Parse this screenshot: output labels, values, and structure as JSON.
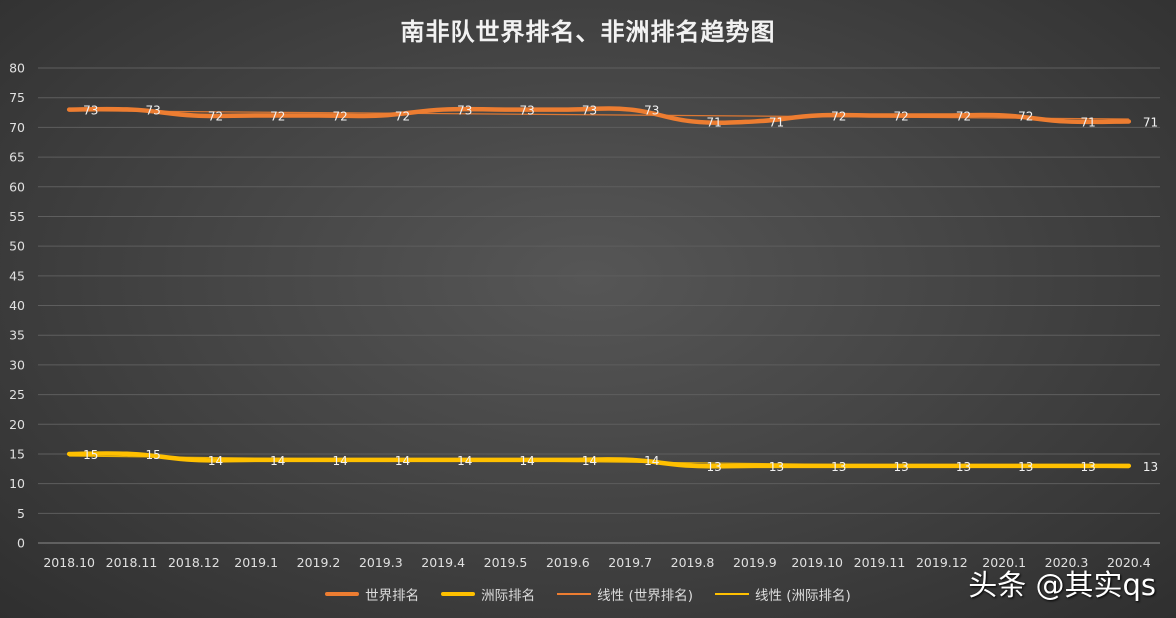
{
  "chart_data": {
    "type": "line",
    "title": "南非队世界排名、非洲排名趋势图",
    "categories": [
      "2018.10",
      "2018.11",
      "2018.12",
      "2019.1",
      "2019.2",
      "2019.3",
      "2019.4",
      "2019.5",
      "2019.6",
      "2019.7",
      "2019.8",
      "2019.9",
      "2019.10",
      "2019.11",
      "2019.12",
      "2020.1",
      "2020.3",
      "2020.4"
    ],
    "series": [
      {
        "name": "世界排名",
        "values": [
          73,
          73,
          72,
          72,
          72,
          72,
          73,
          73,
          73,
          73,
          71,
          71,
          72,
          72,
          72,
          72,
          71,
          71
        ],
        "color": "#ed7d31"
      },
      {
        "name": "洲际排名",
        "values": [
          15,
          15,
          14,
          14,
          14,
          14,
          14,
          14,
          14,
          14,
          13,
          13,
          13,
          13,
          13,
          13,
          13,
          13
        ],
        "color": "#ffc000"
      }
    ],
    "trendlines": [
      {
        "name": "线性 (世界排名)",
        "color": "#ed7d31"
      },
      {
        "name": "线性 (洲际排名)",
        "color": "#ffc000"
      }
    ],
    "ylim": [
      0,
      80
    ],
    "y_ticks": [
      0,
      5,
      10,
      15,
      20,
      25,
      30,
      35,
      40,
      45,
      50,
      55,
      60,
      65,
      70,
      75,
      80
    ],
    "grid": true,
    "legend_position": "bottom"
  },
  "watermark": "头条 @其实qs"
}
